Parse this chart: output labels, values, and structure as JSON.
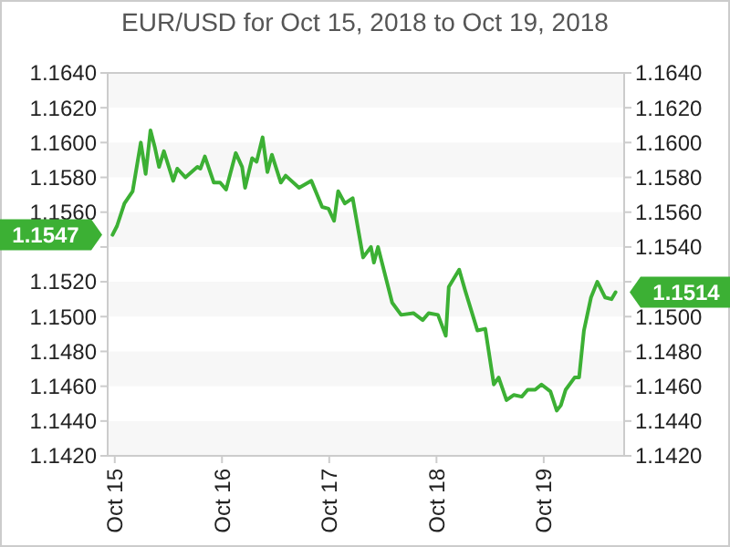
{
  "chart_data": {
    "type": "line",
    "title": "EUR/USD for Oct 15, 2018 to Oct 19, 2018",
    "x": [
      "2018-10-14T23:30",
      "2018-10-15T00:30",
      "2018-10-15T02:10",
      "2018-10-15T04:00",
      "2018-10-15T05:50",
      "2018-10-15T06:55",
      "2018-10-15T08:00",
      "2018-10-15T09:00",
      "2018-10-15T09:55",
      "2018-10-15T11:00",
      "2018-10-15T13:05",
      "2018-10-15T14:00",
      "2018-10-15T15:50",
      "2018-10-15T18:30",
      "2018-10-15T19:10",
      "2018-10-15T20:10",
      "2018-10-15T22:10",
      "2018-10-15T23:35",
      "2018-10-16T00:55",
      "2018-10-16T03:05",
      "2018-10-16T04:30",
      "2018-10-16T05:10",
      "2018-10-16T06:45",
      "2018-10-16T07:45",
      "2018-10-16T09:05",
      "2018-10-16T10:10",
      "2018-10-16T11:10",
      "2018-10-16T13:10",
      "2018-10-16T14:15",
      "2018-10-16T17:15",
      "2018-10-16T20:00",
      "2018-10-16T22:25",
      "2018-10-16T23:50",
      "2018-10-17T01:05",
      "2018-10-17T02:00",
      "2018-10-17T03:30",
      "2018-10-17T05:15",
      "2018-10-17T07:35",
      "2018-10-17T09:20",
      "2018-10-17T10:00",
      "2018-10-17T10:55",
      "2018-10-17T14:05",
      "2018-10-17T16:05",
      "2018-10-17T18:50",
      "2018-10-17T20:55",
      "2018-10-17T22:15",
      "2018-10-18T00:20",
      "2018-10-18T02:05",
      "2018-10-18T02:45",
      "2018-10-18T05:05",
      "2018-10-18T06:25",
      "2018-10-18T09:10",
      "2018-10-18T10:55",
      "2018-10-18T12:50",
      "2018-10-18T13:55",
      "2018-10-18T15:40",
      "2018-10-18T17:20",
      "2018-10-18T19:05",
      "2018-10-18T20:25",
      "2018-10-18T22:05",
      "2018-10-18T23:30",
      "2018-10-19T01:30",
      "2018-10-19T02:55",
      "2018-10-19T03:50",
      "2018-10-19T04:55",
      "2018-10-19T06:55",
      "2018-10-19T07:55",
      "2018-10-19T09:00",
      "2018-10-19T10:35",
      "2018-10-19T12:00",
      "2018-10-19T13:45",
      "2018-10-19T15:10",
      "2018-10-19T16:05"
    ],
    "series": [
      {
        "color": "#3cb034",
        "values": [
          1.1547,
          1.1552,
          1.1565,
          1.1572,
          1.16,
          1.1582,
          1.1607,
          1.1597,
          1.1586,
          1.1595,
          1.1578,
          1.1585,
          1.158,
          1.1586,
          1.1585,
          1.1592,
          1.1577,
          1.1577,
          1.1573,
          1.1594,
          1.1586,
          1.1574,
          1.1591,
          1.1589,
          1.1603,
          1.1583,
          1.1593,
          1.1577,
          1.1581,
          1.1574,
          1.1578,
          1.1563,
          1.1562,
          1.1555,
          1.1572,
          1.1565,
          1.1568,
          1.1534,
          1.154,
          1.1531,
          1.154,
          1.1508,
          1.1501,
          1.1502,
          1.1498,
          1.1502,
          1.1501,
          1.1489,
          1.1517,
          1.1527,
          1.1515,
          1.1492,
          1.1493,
          1.1461,
          1.1465,
          1.1452,
          1.1455,
          1.1454,
          1.1458,
          1.1458,
          1.1461,
          1.1457,
          1.1446,
          1.1449,
          1.1458,
          1.1465,
          1.1465,
          1.1492,
          1.1511,
          1.152,
          1.1511,
          1.151,
          1.1514
        ]
      }
    ],
    "xlim": [
      "2018-10-14T22:25",
      "2018-10-19T18:00"
    ],
    "xticks": [
      {
        "value": "2018-10-15",
        "label": "Oct 15"
      },
      {
        "value": "2018-10-16",
        "label": "Oct 16"
      },
      {
        "value": "2018-10-17",
        "label": "Oct 17"
      },
      {
        "value": "2018-10-18",
        "label": "Oct 18"
      },
      {
        "value": "2018-10-19",
        "label": "Oct 19"
      }
    ],
    "ylim": [
      1.142,
      1.164
    ],
    "yticks": [
      {
        "value": 1.142,
        "label": "1.1420"
      },
      {
        "value": 1.144,
        "label": "1.1440"
      },
      {
        "value": 1.146,
        "label": "1.1460"
      },
      {
        "value": 1.148,
        "label": "1.1480"
      },
      {
        "value": 1.15,
        "label": "1.1500"
      },
      {
        "value": 1.152,
        "label": "1.1520"
      },
      {
        "value": 1.154,
        "label": null
      },
      {
        "value": 1.156,
        "label": "1.1560"
      },
      {
        "value": 1.158,
        "label": "1.1580"
      },
      {
        "value": 1.16,
        "label": "1.1600"
      },
      {
        "value": 1.162,
        "label": "1.1620"
      },
      {
        "value": 1.164,
        "label": "1.1640"
      }
    ],
    "y2lim": [
      1.142,
      1.164
    ],
    "y2ticks": [
      {
        "value": 1.142,
        "label": "1.1420"
      },
      {
        "value": 1.144,
        "label": "1.1440"
      },
      {
        "value": 1.146,
        "label": "1.1460"
      },
      {
        "value": 1.148,
        "label": "1.1480"
      },
      {
        "value": 1.15,
        "label": "1.1500"
      },
      {
        "value": 1.152,
        "label": null
      },
      {
        "value": 1.154,
        "label": "1.1540"
      },
      {
        "value": 1.156,
        "label": "1.1560"
      },
      {
        "value": 1.158,
        "label": "1.1580"
      },
      {
        "value": 1.16,
        "label": "1.1600"
      },
      {
        "value": 1.162,
        "label": "1.1620"
      },
      {
        "value": 1.164,
        "label": "1.1640"
      }
    ],
    "annotations": [
      {
        "text": "1.1547",
        "x": "2018-10-14T23:30",
        "y": 1.1547
      },
      {
        "text": "1.1514",
        "x": "2018-10-19T16:05",
        "y": 1.1514
      }
    ]
  }
}
